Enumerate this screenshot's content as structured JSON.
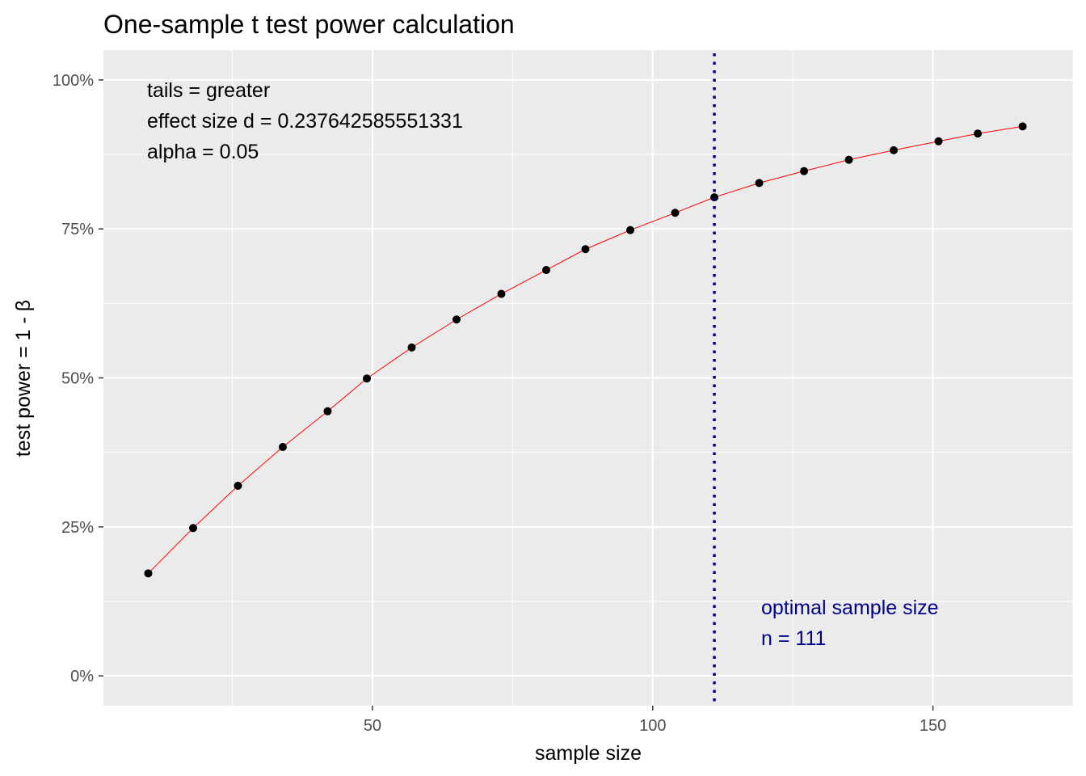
{
  "chart_data": {
    "type": "line",
    "title": "One-sample t test power calculation",
    "xlabel": "sample size",
    "ylabel": "test power = 1 - β",
    "xlim": [
      2,
      175
    ],
    "ylim": [
      -0.05,
      1.05
    ],
    "x_ticks": [
      50,
      100,
      150
    ],
    "x_tick_labels": [
      "50",
      "100",
      "150"
    ],
    "y_ticks": [
      0,
      0.25,
      0.5,
      0.75,
      1.0
    ],
    "y_tick_labels": [
      "0%",
      "25%",
      "50%",
      "75%",
      "100%"
    ],
    "grid": true,
    "series": [
      {
        "x": [
          10,
          18,
          26,
          34,
          42,
          49,
          57,
          65,
          73,
          81,
          88,
          96,
          104,
          111,
          119,
          127,
          135,
          143,
          151,
          158,
          166
        ],
        "y": [
          0.172,
          0.248,
          0.319,
          0.384,
          0.444,
          0.499,
          0.551,
          0.598,
          0.641,
          0.681,
          0.716,
          0.748,
          0.777,
          0.803,
          0.827,
          0.847,
          0.866,
          0.882,
          0.897,
          0.91,
          0.922
        ]
      }
    ],
    "line_color": "#ff0000",
    "point_color": "#000000",
    "optimal_n": 111,
    "optimal_line_color": "#00008b",
    "annotations": {
      "params": [
        "tails = greater",
        "effect size d = 0.237642585551331",
        "alpha = 0.05"
      ],
      "optimal": [
        "optimal sample size",
        "n = 111"
      ]
    },
    "panel_background": "#ebebeb",
    "grid_color": "#ffffff"
  }
}
